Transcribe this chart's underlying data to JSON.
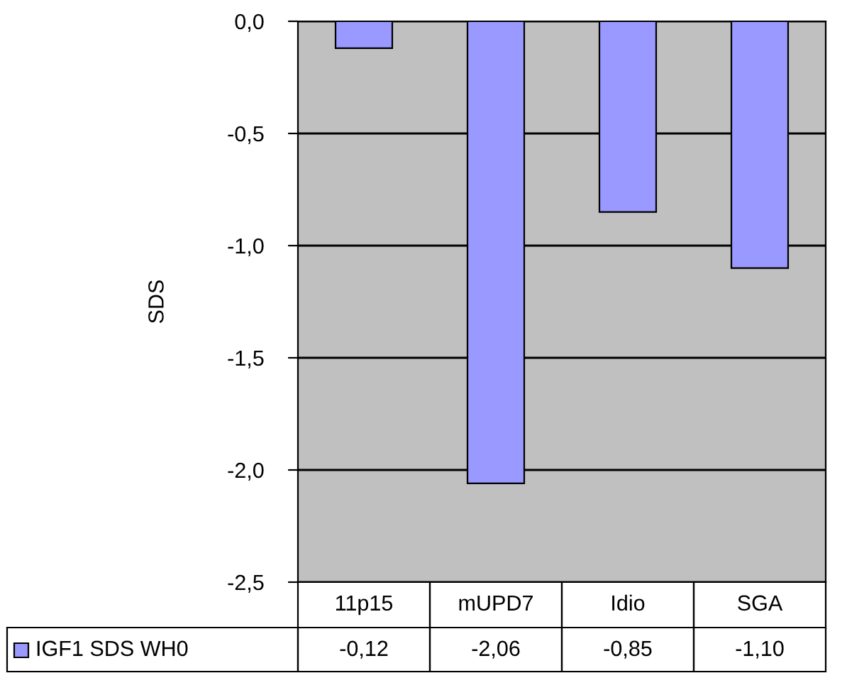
{
  "chart_data": {
    "type": "bar",
    "ylabel": "SDS",
    "categories": [
      "11p15",
      "mUPD7",
      "Idio",
      "SGA"
    ],
    "series": [
      {
        "name": "IGF1 SDS WH0",
        "color": "#9999ff",
        "values": [
          -0.12,
          -2.06,
          -0.85,
          -1.1
        ],
        "value_labels": [
          "-0,12",
          "-2,06",
          "-0,85",
          "-1,10"
        ]
      }
    ],
    "ylim": [
      -2.5,
      0
    ],
    "yticks": [
      {
        "value": 0,
        "label": "0,0"
      },
      {
        "value": -0.5,
        "label": "-0,5"
      },
      {
        "value": -1.0,
        "label": "-1,0"
      },
      {
        "value": -1.5,
        "label": "-1,5"
      },
      {
        "value": -2.0,
        "label": "-2,0"
      },
      {
        "value": -2.5,
        "label": "-2,5"
      }
    ],
    "grid": "y"
  }
}
